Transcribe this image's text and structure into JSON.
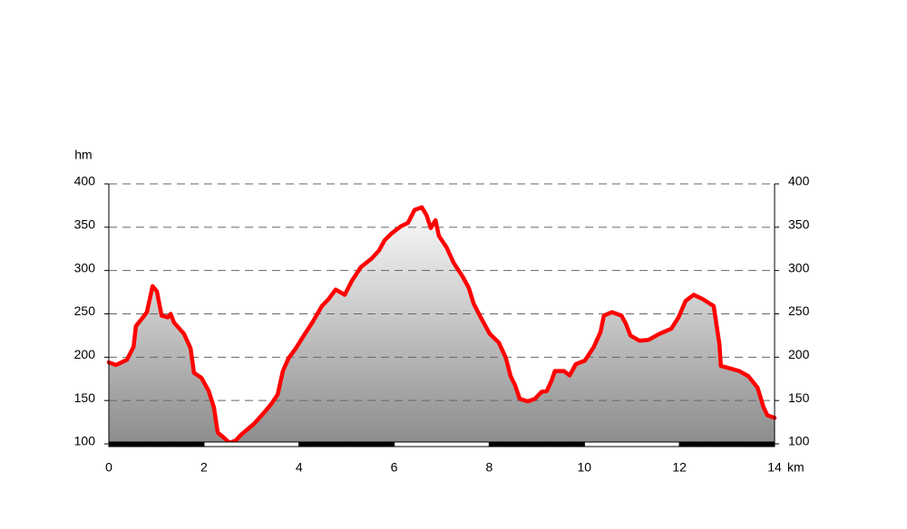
{
  "chart_data": {
    "type": "area",
    "y_label": "hm",
    "x_label": "km",
    "xlim": [
      0,
      14
    ],
    "xticks": [
      0,
      2,
      4,
      6,
      8,
      10,
      12,
      14
    ],
    "ylim": [
      100,
      400
    ],
    "yticks": [
      100,
      150,
      200,
      250,
      300,
      350,
      400
    ],
    "y2lim": [
      100,
      400
    ],
    "y2ticks": [
      100,
      150,
      200,
      250,
      300,
      350,
      400
    ],
    "grid": true,
    "x": [
      0,
      0.15,
      0.38,
      0.52,
      0.57,
      0.69,
      0.8,
      0.92,
      1.01,
      1.11,
      1.24,
      1.3,
      1.37,
      1.58,
      1.72,
      1.79,
      1.95,
      2.1,
      2.21,
      2.29,
      2.4,
      2.54,
      2.67,
      2.77,
      3.05,
      3.28,
      3.43,
      3.55,
      3.66,
      3.78,
      3.93,
      4.1,
      4.29,
      4.48,
      4.62,
      4.77,
      4.96,
      5.11,
      5.3,
      5.53,
      5.68,
      5.8,
      5.95,
      6.14,
      6.29,
      6.43,
      6.58,
      6.68,
      6.77,
      6.87,
      6.94,
      7.1,
      7.25,
      7.44,
      7.57,
      7.67,
      7.82,
      8.01,
      8.2,
      8.35,
      8.45,
      8.54,
      8.64,
      8.81,
      8.96,
      9.1,
      9.21,
      9.31,
      9.38,
      9.57,
      9.69,
      9.82,
      10.01,
      10.2,
      10.34,
      10.41,
      10.58,
      10.78,
      10.87,
      10.97,
      11.16,
      11.35,
      11.58,
      11.83,
      11.98,
      12.13,
      12.3,
      12.49,
      12.72,
      12.84,
      12.87,
      13.07,
      13.26,
      13.45,
      13.64,
      13.77,
      13.85,
      14
    ],
    "series": [
      {
        "color": "#ff0000",
        "values": [
          194,
          191,
          197,
          212,
          236,
          244,
          252,
          282,
          276,
          248,
          246,
          250,
          240,
          227,
          210,
          182,
          176,
          161,
          142,
          113,
          108,
          101,
          104,
          110,
          123,
          137,
          147,
          157,
          184,
          199,
          210,
          225,
          241,
          259,
          267,
          278,
          272,
          288,
          304,
          314,
          323,
          335,
          343,
          351,
          355,
          370,
          373,
          364,
          349,
          358,
          340,
          327,
          309,
          293,
          280,
          262,
          246,
          227,
          217,
          199,
          178,
          168,
          152,
          149,
          152,
          160,
          161,
          173,
          184,
          184,
          179,
          192,
          196,
          212,
          229,
          248,
          252,
          248,
          239,
          225,
          219,
          220,
          227,
          233,
          246,
          265,
          272,
          267,
          259,
          215,
          190,
          187,
          184,
          178,
          165,
          142,
          133,
          130
        ]
      }
    ]
  }
}
